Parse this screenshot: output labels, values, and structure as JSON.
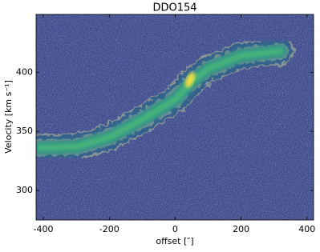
{
  "chart_data": {
    "type": "pv-diagram",
    "title": "DDO154",
    "xlabel": "offset [″]",
    "ylabel": "Velocity [km s⁻¹]",
    "x": [
      -410,
      -300,
      -200,
      -100,
      0,
      50,
      100,
      200,
      320
    ],
    "values": [
      336,
      337,
      345,
      360,
      377,
      392,
      403,
      414,
      418
    ],
    "xlim": [
      -422,
      420
    ],
    "ylim": [
      275,
      449
    ],
    "xticks": [
      -400,
      -200,
      0,
      200,
      400
    ],
    "yticks": [
      300,
      350,
      400
    ],
    "background_color": "#3f4a8a",
    "contour_color": "#8f9a96"
  }
}
